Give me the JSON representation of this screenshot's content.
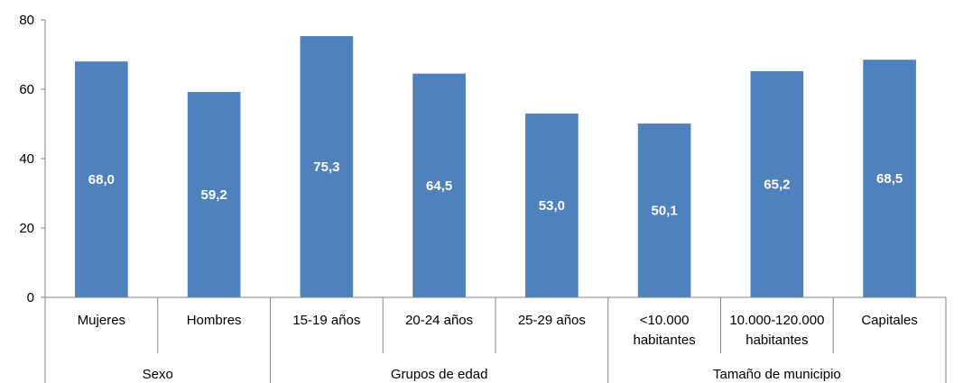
{
  "chart_data": {
    "type": "bar",
    "categories": [
      "Mujeres",
      "Hombres",
      "15-19 años",
      "20-24 años",
      "25-29 años",
      "<10.000 habitantes",
      "10.000-120.000 habitantes",
      "Capitales"
    ],
    "category_lines": [
      [
        "Mujeres"
      ],
      [
        "Hombres"
      ],
      [
        "15-19 años"
      ],
      [
        "20-24 años"
      ],
      [
        "25-29 años"
      ],
      [
        "<10.000",
        "habitantes"
      ],
      [
        "10.000-120.000",
        "habitantes"
      ],
      [
        "Capitales"
      ]
    ],
    "values": [
      68.0,
      59.2,
      75.3,
      64.5,
      53.0,
      50.1,
      65.2,
      68.5
    ],
    "value_labels": [
      "68,0",
      "59,2",
      "75,3",
      "64,5",
      "53,0",
      "50,1",
      "65,2",
      "68,5"
    ],
    "groups": [
      {
        "label": "Sexo",
        "count": 2
      },
      {
        "label": "Grupos de edad",
        "count": 3
      },
      {
        "label": "Tamaño de municipio",
        "count": 3
      }
    ],
    "title": "",
    "xlabel": "",
    "ylabel": "",
    "ylim": [
      0,
      80
    ],
    "yticks": [
      0,
      20,
      40,
      60,
      80
    ],
    "grid": false,
    "colors": {
      "bar": "#4f81bd",
      "axis": "#868686"
    }
  }
}
